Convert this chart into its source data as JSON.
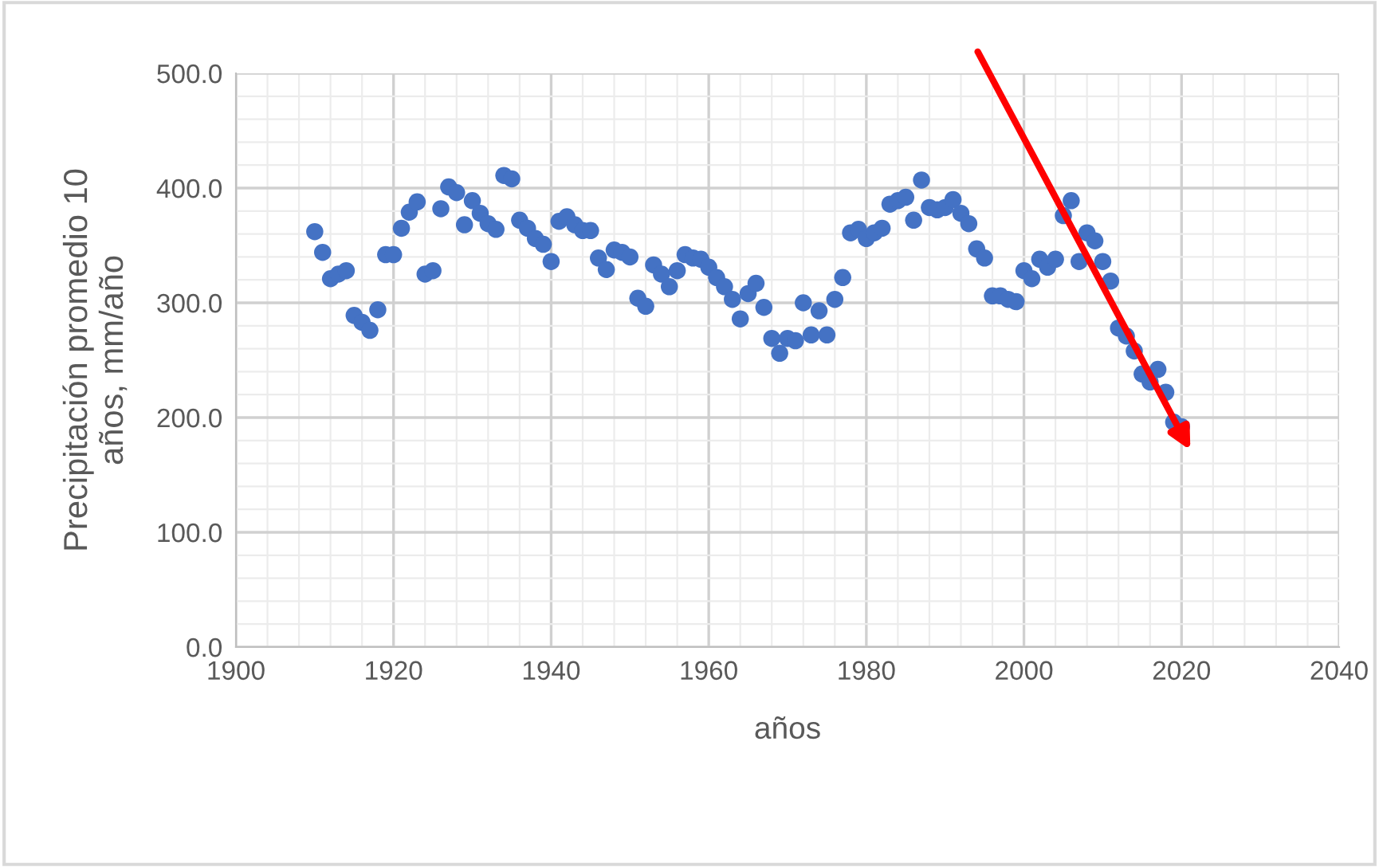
{
  "chart_data": {
    "type": "scatter",
    "xlabel": "años",
    "ylabel": "Precipitación promedio 10\naños, mm/año",
    "x": [
      1910,
      1911,
      1912,
      1913,
      1914,
      1915,
      1916,
      1917,
      1918,
      1919,
      1920,
      1921,
      1922,
      1923,
      1924,
      1925,
      1926,
      1927,
      1928,
      1929,
      1930,
      1931,
      1932,
      1933,
      1934,
      1935,
      1936,
      1937,
      1938,
      1939,
      1940,
      1941,
      1942,
      1943,
      1944,
      1945,
      1946,
      1947,
      1948,
      1949,
      1950,
      1951,
      1952,
      1953,
      1954,
      1955,
      1956,
      1957,
      1958,
      1959,
      1960,
      1961,
      1962,
      1963,
      1964,
      1965,
      1966,
      1967,
      1968,
      1969,
      1970,
      1971,
      1972,
      1973,
      1974,
      1975,
      1976,
      1977,
      1978,
      1979,
      1980,
      1981,
      1982,
      1983,
      1984,
      1985,
      1986,
      1987,
      1988,
      1989,
      1990,
      1991,
      1992,
      1993,
      1994,
      1995,
      1996,
      1997,
      1998,
      1999,
      2000,
      2001,
      2002,
      2003,
      2004,
      2005,
      2006,
      2007,
      2008,
      2009,
      2010,
      2011,
      2012,
      2013,
      2014,
      2015,
      2016,
      2017,
      2018,
      2019,
      2020
    ],
    "series": [
      {
        "color": "#4472c4",
        "values": [
          362,
          344,
          321,
          325,
          328,
          289,
          283,
          276,
          294,
          342,
          342,
          365,
          379,
          388,
          325,
          328,
          382,
          401,
          396,
          368,
          389,
          378,
          369,
          364,
          411,
          408,
          372,
          365,
          356,
          351,
          336,
          371,
          375,
          368,
          363,
          363,
          339,
          329,
          346,
          344,
          340,
          304,
          297,
          333,
          325,
          314,
          328,
          342,
          339,
          338,
          331,
          322,
          314,
          303,
          286,
          308,
          317,
          296,
          269,
          256,
          269,
          267,
          300,
          272,
          293,
          272,
          303,
          322,
          361,
          364,
          356,
          361,
          365,
          386,
          389,
          392,
          372,
          407,
          383,
          381,
          383,
          390,
          378,
          369,
          347,
          339,
          306,
          306,
          303,
          301,
          328,
          321,
          338,
          331,
          338,
          376,
          389,
          336,
          361,
          354,
          336,
          319,
          278,
          271,
          258,
          238,
          231,
          242,
          222,
          196,
          192
        ]
      }
    ],
    "xlim": [
      1900,
      2040
    ],
    "xticks": [
      1900,
      1920,
      1940,
      1960,
      1980,
      2000,
      2020,
      2040
    ],
    "ylim": [
      0,
      500
    ],
    "yticks": [
      {
        "value": 0,
        "label": "0.0"
      },
      {
        "value": 100,
        "label": "100.0"
      },
      {
        "value": 200,
        "label": "200.0"
      },
      {
        "value": 300,
        "label": "300.0"
      },
      {
        "value": 400,
        "label": "400.0"
      },
      {
        "value": 500,
        "label": "500.0"
      }
    ],
    "grid": true,
    "marker": "circle"
  }
}
